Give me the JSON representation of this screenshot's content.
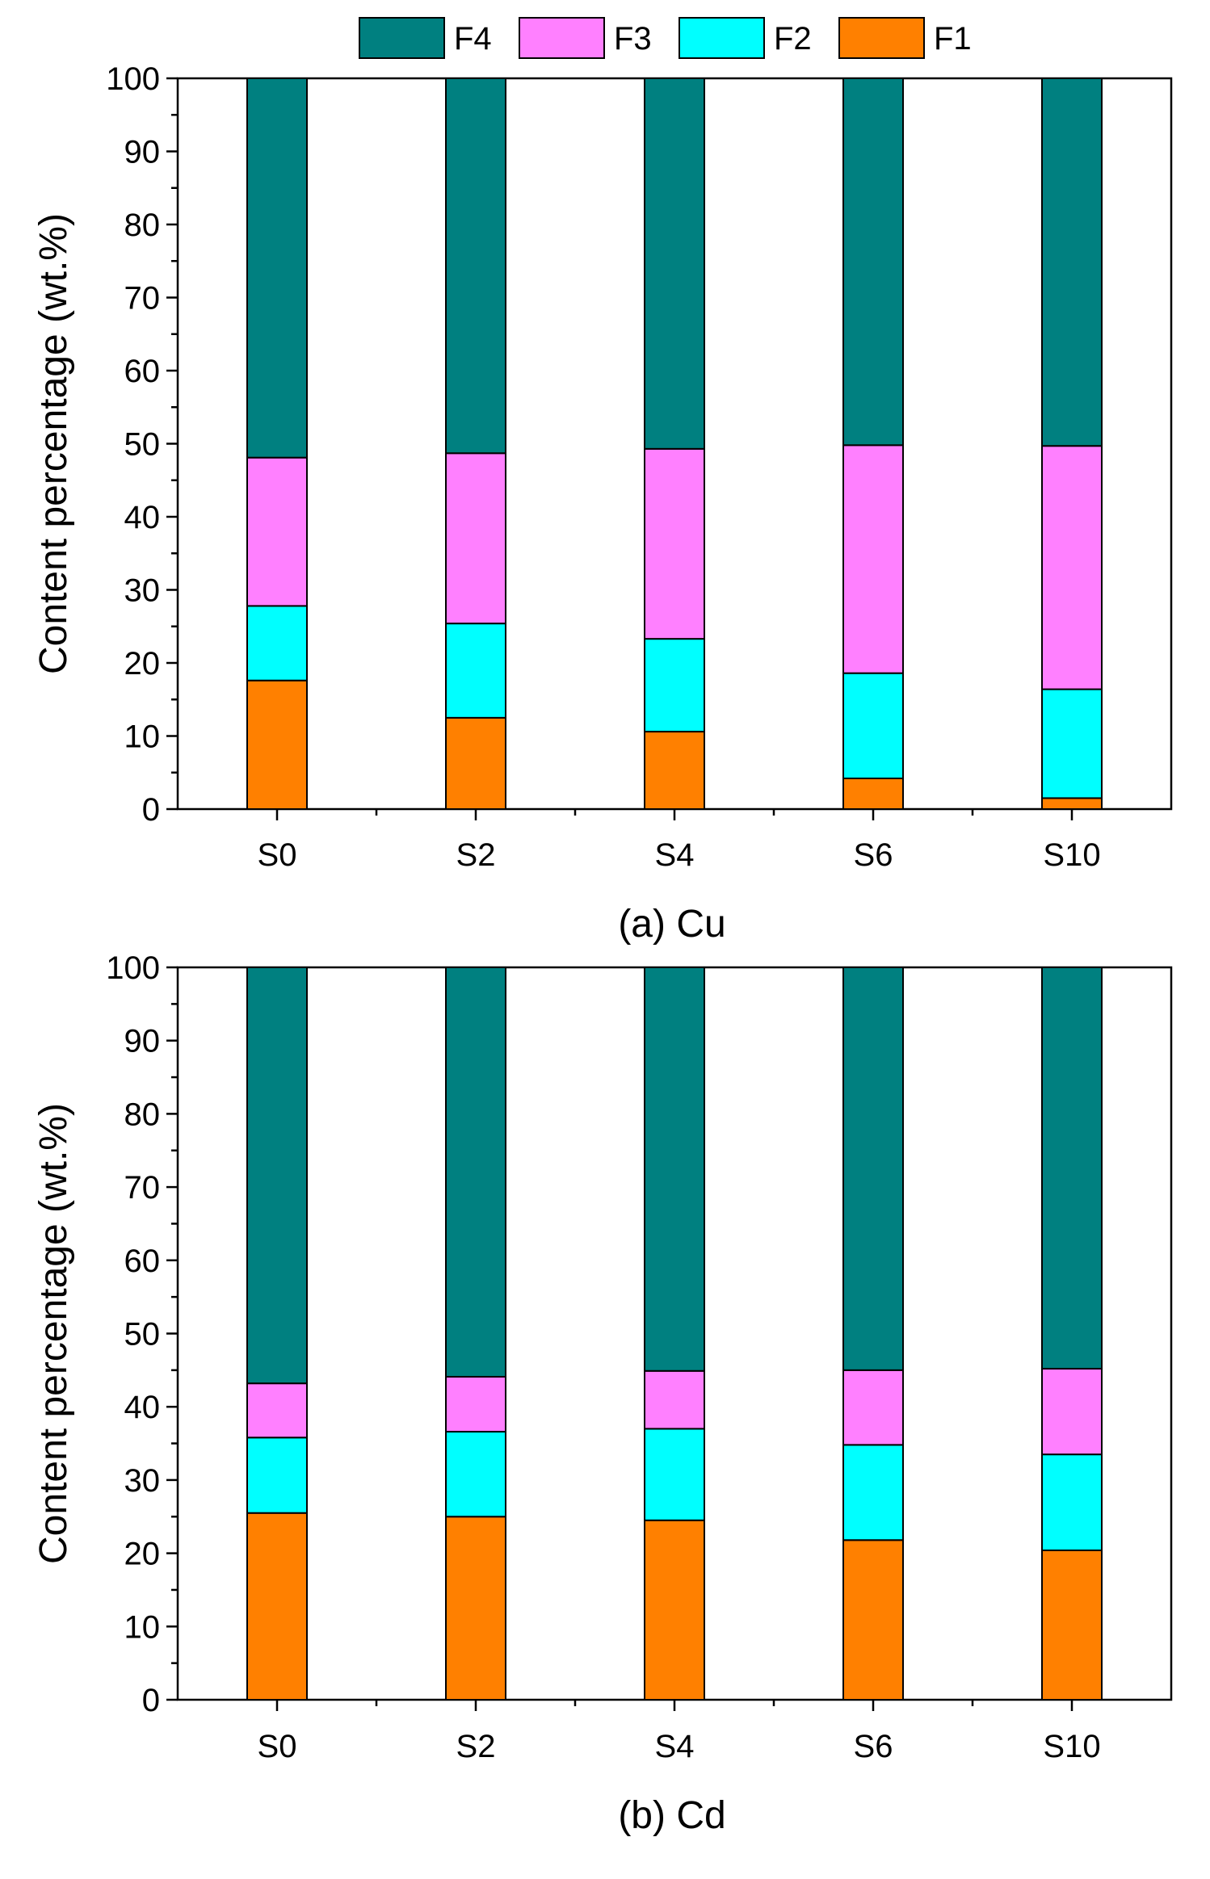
{
  "chart_data": [
    {
      "type": "bar",
      "stacked": true,
      "title": "(a) Cu",
      "xlabel": "",
      "ylabel": "Content percentage (wt.%)",
      "ylim": [
        0,
        100
      ],
      "yticks": [
        "0",
        "10",
        "20",
        "30",
        "40",
        "50",
        "60",
        "70",
        "80",
        "90",
        "100"
      ],
      "categories": [
        "S0",
        "S2",
        "S4",
        "S6",
        "S10"
      ],
      "series": [
        {
          "name": "F1",
          "color": "#FF8000",
          "values": [
            17.6,
            12.5,
            10.6,
            4.2,
            1.5
          ]
        },
        {
          "name": "F2",
          "color": "#00FFFF",
          "values": [
            10.2,
            12.9,
            12.7,
            14.4,
            14.9
          ]
        },
        {
          "name": "F3",
          "color": "#FF80FF",
          "values": [
            20.3,
            23.3,
            26.0,
            31.2,
            33.3
          ]
        },
        {
          "name": "F4",
          "color": "#008080",
          "values": [
            51.9,
            51.3,
            50.7,
            50.2,
            50.3
          ]
        }
      ]
    },
    {
      "type": "bar",
      "stacked": true,
      "title": "(b) Cd",
      "xlabel": "",
      "ylabel": "Content percentage (wt.%)",
      "ylim": [
        0,
        100
      ],
      "yticks": [
        "0",
        "10",
        "20",
        "30",
        "40",
        "50",
        "60",
        "70",
        "80",
        "90",
        "100"
      ],
      "categories": [
        "S0",
        "S2",
        "S4",
        "S6",
        "S10"
      ],
      "series": [
        {
          "name": "F1",
          "color": "#FF8000",
          "values": [
            25.5,
            25.0,
            24.5,
            21.8,
            20.4
          ]
        },
        {
          "name": "F2",
          "color": "#00FFFF",
          "values": [
            10.3,
            11.6,
            12.5,
            13.0,
            13.1
          ]
        },
        {
          "name": "F3",
          "color": "#FF80FF",
          "values": [
            7.4,
            7.5,
            7.9,
            10.2,
            11.7
          ]
        },
        {
          "name": "F4",
          "color": "#008080",
          "values": [
            56.8,
            55.9,
            55.1,
            55.0,
            54.8
          ]
        }
      ]
    }
  ],
  "legend": {
    "placement": "top",
    "items": [
      {
        "label": "F4",
        "color": "#008080"
      },
      {
        "label": "F3",
        "color": "#FF80FF"
      },
      {
        "label": "F2",
        "color": "#00FFFF"
      },
      {
        "label": "F1",
        "color": "#FF8000"
      }
    ]
  }
}
